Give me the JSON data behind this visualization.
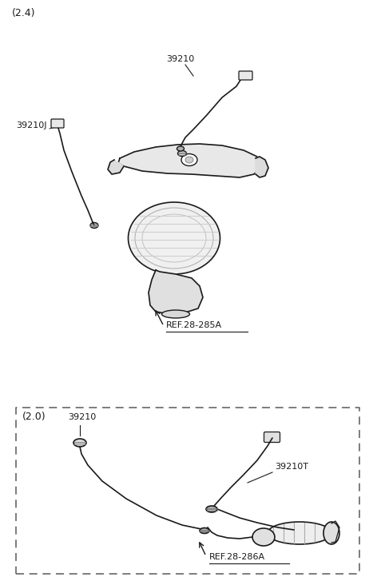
{
  "bg_color": "#ffffff",
  "line_color": "#1a1a1a",
  "title_24": "(2.4)",
  "title_20": "(2.0)",
  "label_39210": "39210",
  "label_39210J": "39210J",
  "label_39210T": "39210T",
  "label_ref285": "REF.28-285A",
  "label_ref286": "REF.28-286A",
  "fig_width": 4.67,
  "fig_height": 7.27,
  "dpi": 100
}
